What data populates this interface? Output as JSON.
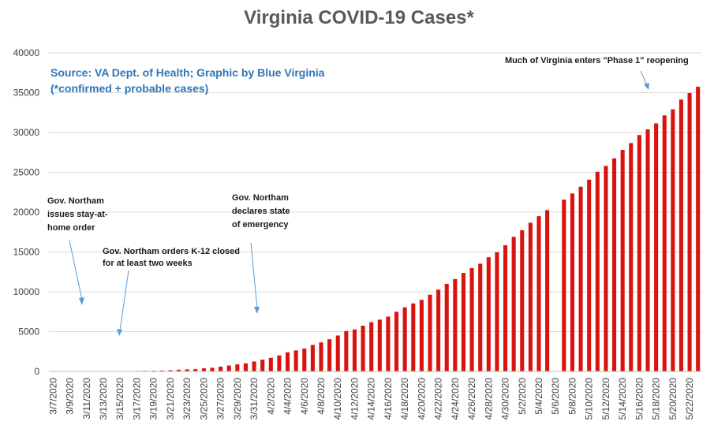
{
  "chart_data": {
    "type": "bar",
    "title": "Virginia COVID-19 Cases*",
    "source_lines": [
      "Source: VA Dept. of Health; Graphic by Blue Virginia",
      "(*confirmed + probable cases)"
    ],
    "ylim": [
      0,
      40000
    ],
    "yticks": [
      0,
      5000,
      10000,
      15000,
      20000,
      25000,
      30000,
      35000,
      40000
    ],
    "bar_color": "#D9140F",
    "grid": true,
    "categories": [
      "3/7/2020",
      "3/8/2020",
      "3/9/2020",
      "3/10/2020",
      "3/11/2020",
      "3/12/2020",
      "3/13/2020",
      "3/14/2020",
      "3/15/2020",
      "3/16/2020",
      "3/17/2020",
      "3/18/2020",
      "3/19/2020",
      "3/20/2020",
      "3/21/2020",
      "3/22/2020",
      "3/23/2020",
      "3/24/2020",
      "3/25/2020",
      "3/26/2020",
      "3/27/2020",
      "3/28/2020",
      "3/29/2020",
      "3/30/2020",
      "3/31/2020",
      "4/1/2020",
      "4/2/2020",
      "4/3/2020",
      "4/4/2020",
      "4/5/2020",
      "4/6/2020",
      "4/7/2020",
      "4/8/2020",
      "4/9/2020",
      "4/10/2020",
      "4/11/2020",
      "4/12/2020",
      "4/13/2020",
      "4/14/2020",
      "4/15/2020",
      "4/16/2020",
      "4/17/2020",
      "4/18/2020",
      "4/19/2020",
      "4/20/2020",
      "4/21/2020",
      "4/22/2020",
      "4/23/2020",
      "4/24/2020",
      "4/25/2020",
      "4/26/2020",
      "4/27/2020",
      "4/28/2020",
      "4/29/2020",
      "4/30/2020",
      "5/1/2020",
      "5/2/2020",
      "5/3/2020",
      "5/4/2020",
      "5/5/2020",
      "5/6/2020",
      "5/7/2020",
      "5/8/2020",
      "5/9/2020",
      "5/10/2020",
      "5/11/2020",
      "5/12/2020",
      "5/13/2020",
      "5/14/2020",
      "5/15/2020",
      "5/16/2020",
      "5/17/2020",
      "5/18/2020",
      "5/19/2020",
      "5/20/2020",
      "5/21/2020",
      "5/22/2020",
      "5/23/2020"
    ],
    "tick_labels": [
      "3/7/2020",
      "3/9/2020",
      "3/11/2020",
      "3/13/2020",
      "3/15/2020",
      "3/17/2020",
      "3/19/2020",
      "3/21/2020",
      "3/23/2020",
      "3/25/2020",
      "3/27/2020",
      "3/29/2020",
      "3/31/2020",
      "4/2/2020",
      "4/4/2020",
      "4/6/2020",
      "4/8/2020",
      "4/10/2020",
      "4/12/2020",
      "4/14/2020",
      "4/16/2020",
      "4/18/2020",
      "4/20/2020",
      "4/22/2020",
      "4/24/2020",
      "4/26/2020",
      "4/28/2020",
      "4/30/2020",
      "5/2/2020",
      "5/4/2020",
      "5/6/2020",
      "5/8/2020",
      "5/10/2020",
      "5/12/2020",
      "5/14/2020",
      "5/16/2020",
      "5/18/2020",
      "5/20/2020",
      "5/22/2020"
    ],
    "values": [
      2,
      3,
      3,
      9,
      17,
      30,
      41,
      45,
      45,
      51,
      67,
      77,
      99,
      114,
      152,
      219,
      254,
      290,
      391,
      460,
      604,
      739,
      890,
      1020,
      1250,
      1484,
      1706,
      2012,
      2407,
      2637,
      2878,
      3333,
      3645,
      4042,
      4509,
      5077,
      5274,
      5747,
      6182,
      6500,
      6889,
      7491,
      8053,
      8537,
      8990,
      9630,
      10266,
      10998,
      11594,
      12366,
      12970,
      13535,
      14339,
      14961,
      15846,
      16901,
      17731,
      18671,
      19492,
      20256,
      null,
      21570,
      22342,
      23196,
      24081,
      25070,
      25800,
      26746,
      27813,
      28672,
      29683,
      30388,
      31140,
      32145,
      32908,
      34137,
      34950,
      35749
    ],
    "annotations": [
      {
        "lines": [
          "Gov. Northam",
          "issues stay-at-",
          "home order"
        ]
      },
      {
        "lines": [
          "Gov. Northam orders K-12 closed",
          "for at least two weeks"
        ]
      },
      {
        "lines": [
          "Gov. Northam",
          "declares state",
          "of emergency"
        ]
      },
      {
        "lines": [
          "Much of Virginia enters \"Phase 1\" reopening"
        ]
      }
    ]
  }
}
